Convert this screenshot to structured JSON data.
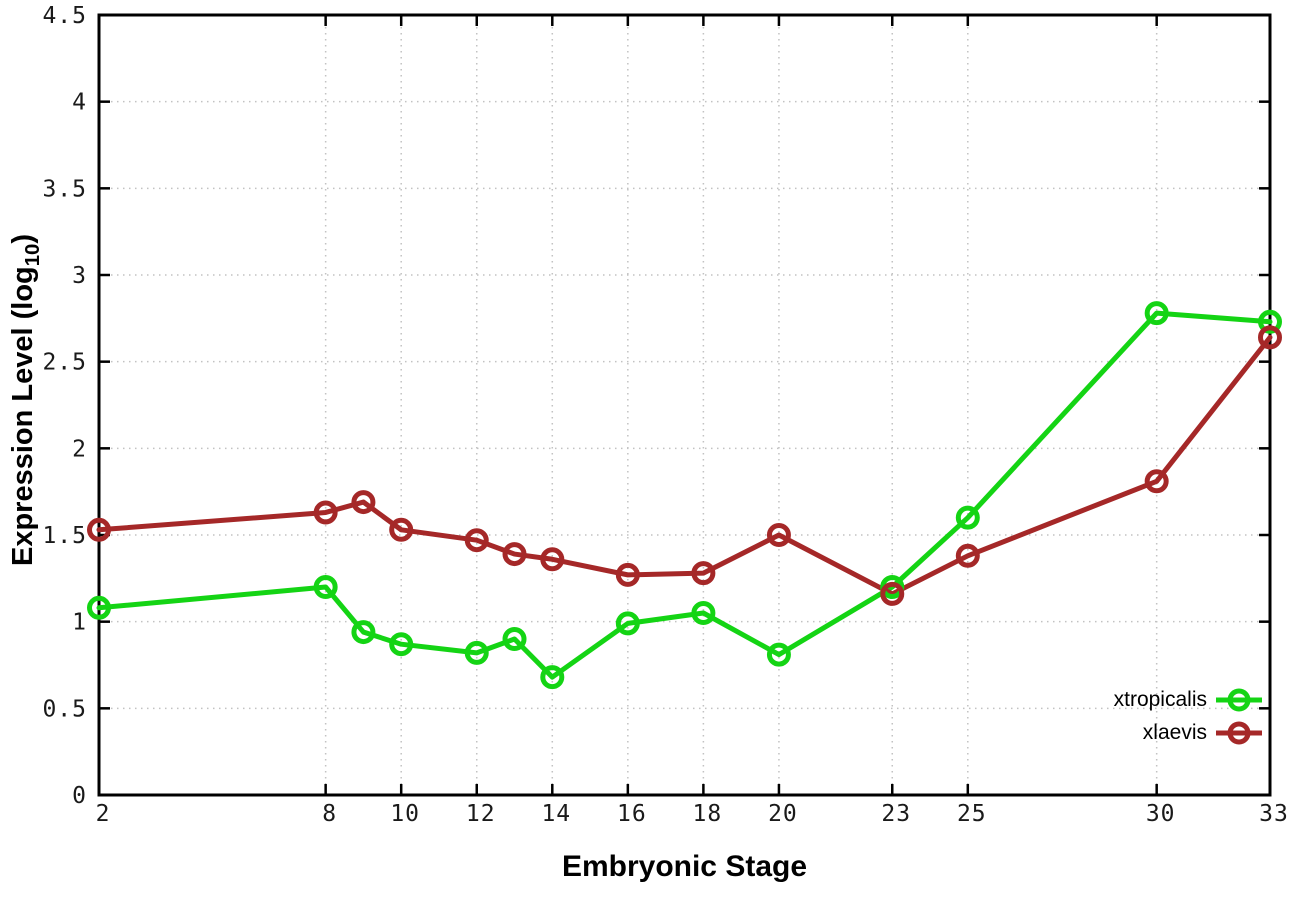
{
  "chart_data": {
    "type": "line",
    "title": "",
    "xlabel": "Embryonic Stage",
    "ylabel": "Expression Level (log10)",
    "ylabel_parts": {
      "prefix": "Expression Level (log",
      "sub": "10",
      "suffix": ")"
    },
    "x": [
      2,
      8,
      9,
      10,
      12,
      13,
      14,
      16,
      18,
      20,
      23,
      25,
      30,
      33
    ],
    "xticks": [
      2,
      8,
      10,
      12,
      14,
      16,
      18,
      20,
      23,
      25,
      30,
      33
    ],
    "yticks": [
      0,
      0.5,
      1,
      1.5,
      2,
      2.5,
      3,
      3.5,
      4,
      4.5
    ],
    "ytick_labels": [
      "0",
      "0.5",
      "1",
      "1.5",
      "2",
      "2.5",
      "3",
      "3.5",
      "4",
      "4.5"
    ],
    "xlim": [
      2,
      33
    ],
    "ylim": [
      0,
      4.5
    ],
    "grid": true,
    "grid_style": "dotted",
    "legend_position": "inside-bottom-right",
    "series": [
      {
        "name": "xtropicalis",
        "color": "#14d414",
        "marker": "open-circle",
        "values": [
          1.08,
          1.2,
          0.94,
          0.87,
          0.82,
          0.9,
          0.68,
          0.99,
          1.05,
          0.81,
          1.2,
          1.6,
          2.78,
          2.73
        ]
      },
      {
        "name": "xlaevis",
        "color": "#a52828",
        "marker": "open-circle",
        "values": [
          1.53,
          1.63,
          1.69,
          1.53,
          1.47,
          1.39,
          1.36,
          1.27,
          1.28,
          1.5,
          1.16,
          1.38,
          1.81,
          2.64
        ]
      }
    ]
  },
  "colors": {
    "background": "#ffffff",
    "axis": "#000000",
    "grid": "#c2c2c2",
    "tick_text": "#1a1a1a"
  }
}
